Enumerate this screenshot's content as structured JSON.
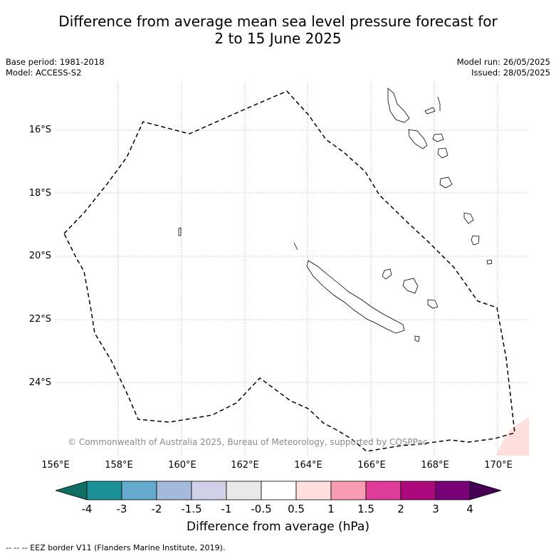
{
  "title_line1": "Difference from average mean sea level pressure forecast for",
  "title_line2": "2 to 15 June 2025",
  "meta": {
    "base_period": "Base period: 1981-2018",
    "model": "Model: ACCESS-S2",
    "model_run": "Model run: 26/05/2025",
    "issued": "Issued: 28/05/2025"
  },
  "lat_labels": [
    "16°S",
    "18°S",
    "20°S",
    "22°S",
    "24°S"
  ],
  "lon_labels": [
    "156°E",
    "158°E",
    "160°E",
    "162°E",
    "164°E",
    "166°E",
    "168°E",
    "170°E"
  ],
  "copyright": "© Commonwealth of Australia 2025, Bureau of Meteorology, supported by COSPPac",
  "colorbar": {
    "title": "Difference from average (hPa)",
    "tick_labels": [
      "-4",
      "-3",
      "-2",
      "-1.5",
      "-1",
      "-0.5",
      "0.5",
      "1",
      "1.5",
      "2",
      "3",
      "4"
    ],
    "colors": [
      "#0f6e62",
      "#1b9097",
      "#64aacf",
      "#a5b9da",
      "#d0d0e8",
      "#e9e9e9",
      "#ffffff",
      "#ffdede",
      "#f99cb4",
      "#de3c98",
      "#ac0a7c",
      "#780078",
      "#450054"
    ]
  },
  "footnote": "--  --  -- EEZ border V11 (Flanders Marine Institute, 2019).",
  "map_features": {
    "eez_border_style": "dashed",
    "anomaly_region": {
      "location": "bottom-right corner",
      "color": "#ffdede"
    },
    "grid": "dotted"
  }
}
